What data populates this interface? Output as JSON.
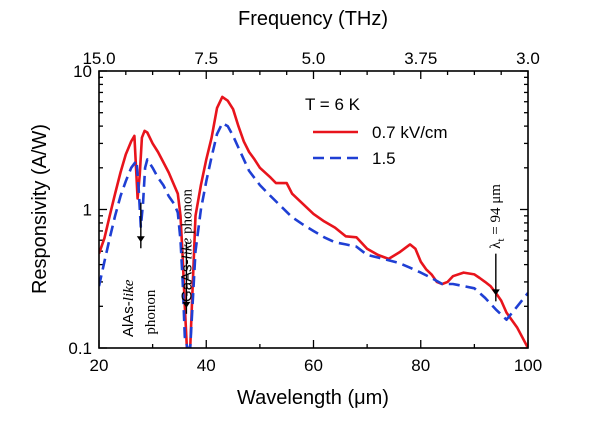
{
  "chart_data": {
    "type": "line",
    "title": "",
    "xlabel": "Wavelength (μm)",
    "ylabel": "Responsivity (A/W)",
    "top_xlabel": "Frequency (THz)",
    "xlim": [
      20,
      100
    ],
    "ylim": [
      0.1,
      10
    ],
    "yscale": "log",
    "x_ticks": [
      "20",
      "40",
      "60",
      "80",
      "100"
    ],
    "y_ticks": [
      "0.1",
      "1",
      "10"
    ],
    "top_ticks": [
      {
        "label": "15.0",
        "wavelength": 20
      },
      {
        "label": "7.5",
        "wavelength": 40
      },
      {
        "label": "5.0",
        "wavelength": 60
      },
      {
        "label": "3.75",
        "wavelength": 80
      },
      {
        "label": "3.0",
        "wavelength": 100
      }
    ],
    "legend": {
      "header": "T = 6 K",
      "position": "top-right"
    },
    "series": [
      {
        "name": "0.7 kV/cm",
        "color": "#e8141c",
        "style": "solid",
        "x": [
          20,
          21,
          22,
          23,
          24,
          25,
          26,
          26.6,
          27.2,
          27.6,
          28.0,
          28.5,
          29,
          30,
          31,
          32,
          33,
          34,
          34.7,
          35.2,
          35.6,
          36,
          36.4,
          37,
          38,
          39,
          40,
          41,
          42,
          43,
          44,
          45,
          46,
          47,
          48,
          49,
          50,
          52,
          53,
          55,
          56,
          58,
          60,
          62,
          64,
          66,
          68,
          70,
          72,
          74,
          76,
          78,
          79,
          80,
          81,
          82,
          83,
          84,
          85,
          86,
          88,
          90,
          91,
          92,
          93,
          94,
          95,
          96,
          98,
          100
        ],
        "y": [
          0.48,
          0.62,
          0.9,
          1.3,
          1.85,
          2.5,
          3.1,
          3.4,
          1.2,
          1.8,
          3.3,
          3.7,
          3.6,
          3.0,
          2.6,
          2.2,
          1.85,
          1.5,
          1.3,
          0.9,
          0.45,
          0.2,
          0.1,
          0.1,
          0.9,
          1.5,
          2.3,
          3.3,
          5.4,
          6.5,
          6.1,
          5.3,
          4.0,
          3.1,
          2.6,
          2.3,
          2.0,
          1.7,
          1.55,
          1.55,
          1.3,
          1.1,
          0.93,
          0.82,
          0.74,
          0.64,
          0.63,
          0.52,
          0.47,
          0.44,
          0.49,
          0.56,
          0.52,
          0.42,
          0.37,
          0.34,
          0.3,
          0.29,
          0.3,
          0.33,
          0.35,
          0.34,
          0.32,
          0.3,
          0.28,
          0.25,
          0.22,
          0.18,
          0.14,
          0.1
        ]
      },
      {
        "name": "1.5",
        "color": "#1f3fd4",
        "style": "dashed",
        "x": [
          20,
          21,
          22,
          23,
          24,
          25,
          26,
          27,
          27.4,
          27.8,
          28.2,
          28.6,
          29,
          30,
          31,
          32,
          33,
          34,
          34.7,
          35.2,
          35.6,
          36,
          36.5,
          37,
          38,
          39,
          40,
          41,
          42,
          43,
          44,
          45,
          46,
          48,
          50,
          52,
          54,
          56,
          58,
          60,
          62,
          64,
          66,
          68,
          70,
          72,
          74,
          76,
          78,
          80,
          82,
          84,
          86,
          88,
          90,
          92,
          94,
          96,
          98,
          100
        ],
        "y": [
          0.28,
          0.42,
          0.62,
          0.9,
          1.25,
          1.6,
          2.0,
          2.25,
          1.4,
          0.75,
          1.1,
          2.0,
          2.3,
          2.0,
          1.7,
          1.5,
          1.25,
          1.1,
          0.95,
          0.6,
          0.3,
          0.12,
          0.1,
          0.1,
          0.5,
          1.0,
          1.6,
          2.4,
          3.5,
          4.2,
          4.0,
          3.4,
          2.8,
          1.9,
          1.5,
          1.25,
          1.05,
          0.88,
          0.78,
          0.7,
          0.63,
          0.58,
          0.56,
          0.54,
          0.47,
          0.45,
          0.43,
          0.41,
          0.38,
          0.35,
          0.32,
          0.29,
          0.29,
          0.28,
          0.27,
          0.23,
          0.19,
          0.16,
          0.2,
          0.25
        ]
      }
    ],
    "annotations": [
      {
        "id": "alas",
        "main": "AlAs-",
        "italic": "like",
        "second": "phonon",
        "arrow_x": 27.8,
        "arrow_y_from": 1.12,
        "arrow_y_to": 0.58
      },
      {
        "id": "gaas",
        "main": "GaAs-",
        "italic": "like",
        "second": " phonon",
        "arrow_x": 36.3,
        "arrow_y_from": 0.58,
        "arrow_y_to": 0.195
      },
      {
        "id": "lambda",
        "main": "λ",
        "sub": "t",
        "second": " = 94  μm",
        "arrow_x": 94,
        "arrow_y_from": 0.48,
        "arrow_y_to": 0.24
      }
    ]
  }
}
